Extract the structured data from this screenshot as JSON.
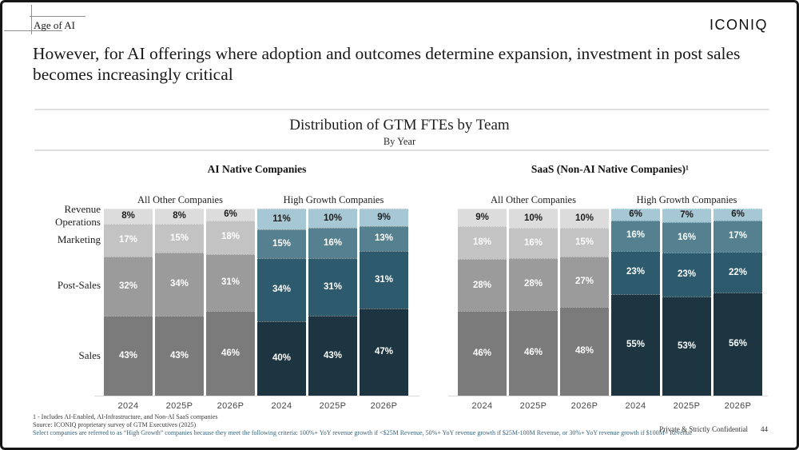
{
  "slide": {
    "eyebrow": "Age of AI",
    "logo_text": "ICONIQ",
    "headline_lines": [
      "However, for AI offerings where adoption and outcomes determine expansion, investment in post sales",
      "becomes increasingly critical"
    ],
    "footnotes": [
      "1 - Includes AI-Enabled, AI-Infrastructure, and Non-AI SaaS companies",
      "Source: ICONIQ proprietary survey of GTM Executives (2025)",
      "Select companies are referred to as “High Growth” companies because they meet the following criteria: 100%+ YoY revenue growth if <$25M Revenue, 50%+ YoY revenue growth if $25M-100M Revenue, or 30%+ YoY revenue growth if $100M+ Revenue"
    ],
    "footer_label": "Private & Strictly Confidential",
    "page_number": "44"
  },
  "chart_data": {
    "type": "bar",
    "variant": "stacked-100-percent",
    "title": "Distribution of GTM FTEs by Team",
    "subtitle": "By Year",
    "row_labels": [
      "Revenue Operations",
      "Marketing",
      "Post-Sales",
      "Sales"
    ],
    "segment_order_top_to_bottom": [
      "Revenue Operations",
      "Marketing",
      "Post-Sales",
      "Sales"
    ],
    "colors": {
      "gray": [
        "#dcdcdc",
        "#c3c3c3",
        "#9b9b9b",
        "#7b7b7b"
      ],
      "teal": [
        "#a6c8d5",
        "#54808f",
        "#2d5a6c",
        "#1c3540"
      ]
    },
    "label_colors": [
      "#1c1c1c",
      "#ffffff",
      "#ffffff",
      "#ffffff"
    ],
    "panels": [
      {
        "title": "AI Native Companies",
        "groups": [
          {
            "label": "All Other Companies",
            "palette": "gray",
            "columns": [
              {
                "year": "2024",
                "values": [
                  8,
                  17,
                  32,
                  43
                ]
              },
              {
                "year": "2025P",
                "values": [
                  8,
                  15,
                  34,
                  43
                ]
              },
              {
                "year": "2026P",
                "values": [
                  6,
                  18,
                  31,
                  46
                ]
              }
            ]
          },
          {
            "label": "High Growth Companies",
            "palette": "teal",
            "columns": [
              {
                "year": "2024",
                "values": [
                  11,
                  15,
                  34,
                  40
                ]
              },
              {
                "year": "2025P",
                "values": [
                  10,
                  16,
                  31,
                  43
                ]
              },
              {
                "year": "2026P",
                "values": [
                  9,
                  13,
                  31,
                  47
                ]
              }
            ]
          }
        ]
      },
      {
        "title": "SaaS (Non-AI Native Companies)¹",
        "groups": [
          {
            "label": "All Other Companies",
            "palette": "gray",
            "columns": [
              {
                "year": "2024",
                "values": [
                  9,
                  18,
                  28,
                  46
                ]
              },
              {
                "year": "2025P",
                "values": [
                  10,
                  16,
                  28,
                  46
                ]
              },
              {
                "year": "2026P",
                "values": [
                  10,
                  15,
                  27,
                  48
                ]
              }
            ]
          },
          {
            "label": "High Growth Companies",
            "palette": "teal",
            "columns": [
              {
                "year": "2024",
                "values": [
                  6,
                  16,
                  23,
                  55
                ]
              },
              {
                "year": "2025P",
                "values": [
                  7,
                  16,
                  23,
                  53
                ]
              },
              {
                "year": "2026P",
                "values": [
                  6,
                  17,
                  22,
                  56
                ]
              }
            ]
          }
        ]
      }
    ]
  }
}
